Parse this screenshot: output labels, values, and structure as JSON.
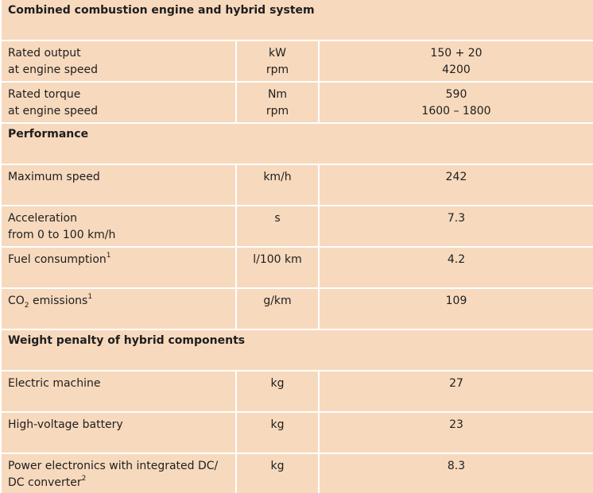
{
  "sections": {
    "combined": "Combined combustion engine and hybrid system",
    "performance": "Performance",
    "weight": "Weight penalty of hybrid components"
  },
  "rows": {
    "rated_output": {
      "label1": "Rated output",
      "label2": "at engine speed",
      "unit1": "kW",
      "unit2": "rpm",
      "value1": "150 + 20",
      "value2": "4200"
    },
    "rated_torque": {
      "label1": "Rated torque",
      "label2": "at engine speed",
      "unit1": "Nm",
      "unit2": "rpm",
      "value1": "590",
      "value2": "1600 – 1800"
    },
    "max_speed": {
      "label": "Maximum speed",
      "unit": "km/h",
      "value": "242"
    },
    "acceleration": {
      "label1": "Acceleration",
      "label2": "from 0 to 100 km/h",
      "unit": "s",
      "value": "7.3"
    },
    "fuel": {
      "label": "Fuel consumption",
      "footnote": "1",
      "unit": "l/100 km",
      "value": "4.2"
    },
    "co2": {
      "label_main": "CO",
      "label_sub": "2",
      "label_rest": " emissions",
      "footnote": "1",
      "unit": "g/km",
      "value": "109"
    },
    "electric_machine": {
      "label": "Electric machine",
      "unit": "kg",
      "value": "27"
    },
    "battery": {
      "label": "High-voltage battery",
      "unit": "kg",
      "value": "23"
    },
    "power_electronics": {
      "label1": "Power electronics with integrated DC/",
      "label2": "DC converter",
      "footnote": "2",
      "unit": "kg",
      "value": "8.3"
    }
  }
}
